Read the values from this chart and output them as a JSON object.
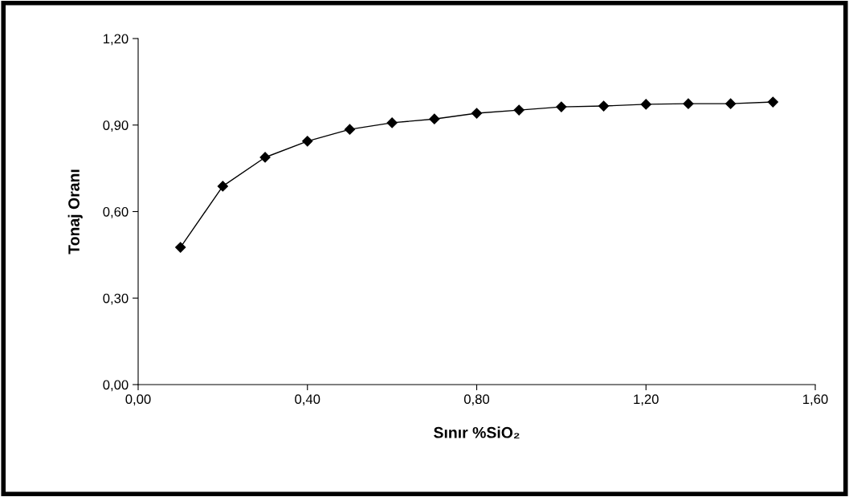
{
  "chart_data": {
    "type": "line",
    "xlabel": "Sınır %SiO₂",
    "ylabel": "Tonaj Oranı",
    "x": [
      0.1,
      0.2,
      0.3,
      0.4,
      0.5,
      0.6,
      0.7,
      0.8,
      0.9,
      1.0,
      1.1,
      1.2,
      1.3,
      1.4,
      1.5
    ],
    "series": [
      {
        "color": "#000000",
        "values": [
          0.476,
          0.688,
          0.788,
          0.844,
          0.885,
          0.908,
          0.921,
          0.941,
          0.952,
          0.963,
          0.966,
          0.972,
          0.974,
          0.974,
          0.98
        ]
      }
    ],
    "xlim": [
      0,
      1.6
    ],
    "ylim": [
      0,
      1.2
    ],
    "xticks": [
      {
        "value": 0,
        "label": "0,00"
      },
      {
        "value": 0.4,
        "label": "0,40"
      },
      {
        "value": 0.8,
        "label": "0,80"
      },
      {
        "value": 1.2,
        "label": "1,20"
      },
      {
        "value": 1.6,
        "label": "1,60"
      }
    ],
    "yticks": [
      {
        "value": 0,
        "label": "0,00"
      },
      {
        "value": 0.3,
        "label": "0,30"
      },
      {
        "value": 0.6,
        "label": "0,60"
      },
      {
        "value": 0.9,
        "label": "0,90"
      },
      {
        "value": 1.2,
        "label": "1,20"
      }
    ],
    "marker": "diamond",
    "line_style": "solid",
    "grid": false,
    "legend": false
  }
}
